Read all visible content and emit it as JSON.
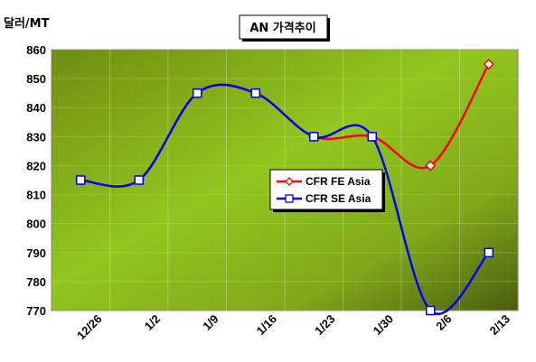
{
  "chart_data": {
    "type": "line",
    "title": "AN 가격추이",
    "ylabel": "달러/MT",
    "xlabel": "",
    "categories": [
      "12/26",
      "1/2",
      "1/9",
      "1/16",
      "1/23",
      "1/30",
      "2/6",
      "2/13"
    ],
    "ylim": [
      770,
      860
    ],
    "yticks": [
      770,
      780,
      790,
      800,
      810,
      820,
      830,
      840,
      850,
      860
    ],
    "grid": true,
    "legend_position": "center-right",
    "series": [
      {
        "name": "CFR FE Asia",
        "values": [
          815,
          815,
          845,
          845,
          830,
          830,
          820,
          855
        ],
        "color": "#ff0000",
        "marker": "diamond"
      },
      {
        "name": "CFR SE Asia",
        "values": [
          815,
          815,
          845,
          845,
          830,
          830,
          770,
          790
        ],
        "color": "#0000ff",
        "marker": "square"
      }
    ]
  }
}
